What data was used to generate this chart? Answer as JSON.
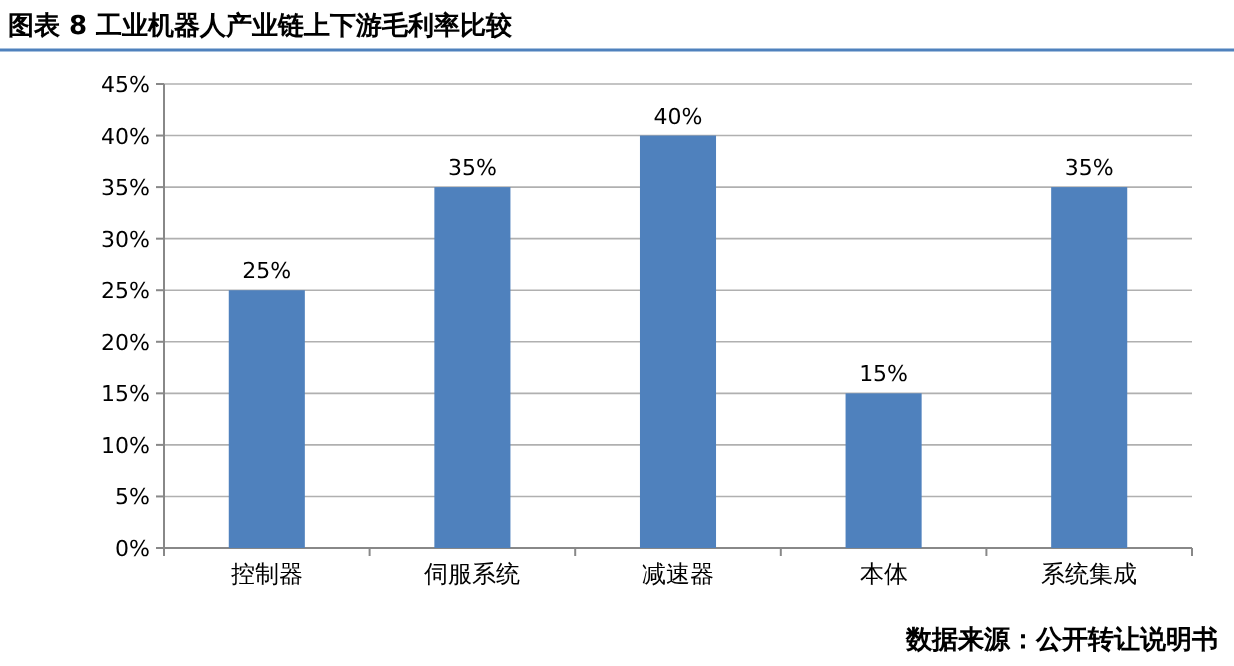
{
  "chart_data": {
    "type": "bar",
    "title": "图表 8 工业机器人产业链上下游毛利率比较",
    "categories": [
      "控制器",
      "伺服系统",
      "减速器",
      "本体",
      "系统集成"
    ],
    "values": [
      25,
      35,
      40,
      15,
      35
    ],
    "value_labels": [
      "25%",
      "35%",
      "40%",
      "15%",
      "35%"
    ],
    "color": "#4f81bd",
    "ylim": [
      0,
      45
    ],
    "yticks": [
      {
        "value": 0,
        "label": "0%"
      },
      {
        "value": 5,
        "label": "5%"
      },
      {
        "value": 10,
        "label": "10%"
      },
      {
        "value": 15,
        "label": "15%"
      },
      {
        "value": 20,
        "label": "20%"
      },
      {
        "value": 25,
        "label": "25%"
      },
      {
        "value": 30,
        "label": "30%"
      },
      {
        "value": 35,
        "label": "35%"
      },
      {
        "value": 40,
        "label": "40%"
      },
      {
        "value": 45,
        "label": "45%"
      }
    ],
    "grid": "y",
    "annotations": [
      "数据来源：公开转让说明书"
    ]
  }
}
